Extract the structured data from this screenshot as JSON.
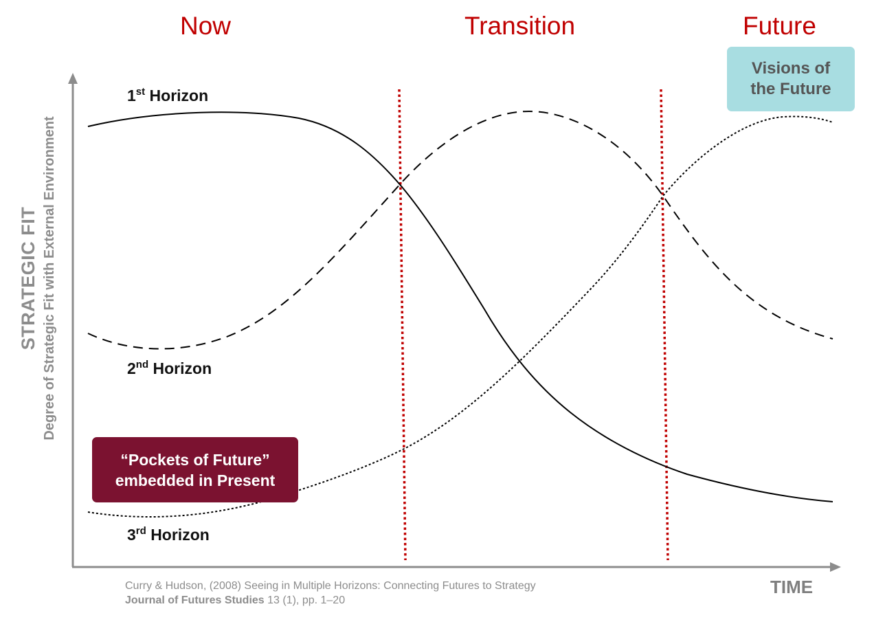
{
  "phases": {
    "now": "Now",
    "transition": "Transition",
    "future": "Future"
  },
  "y_axis": {
    "title": "STRATEGIC FIT",
    "subtitle": "Degree of Strategic Fit with External Environment"
  },
  "x_axis": {
    "title": "TIME"
  },
  "horizons": {
    "first": {
      "number": "1",
      "suffix": "st",
      "word": "Horizon",
      "line_style": "solid"
    },
    "second": {
      "number": "2",
      "suffix": "nd",
      "word": "Horizon",
      "line_style": "dashed"
    },
    "third": {
      "number": "3",
      "suffix": "rd",
      "word": "Horizon",
      "line_style": "dotted"
    }
  },
  "callouts": {
    "visions": {
      "line1": "Visions of",
      "line2": "the Future",
      "color": "#a8dde1"
    },
    "pockets": {
      "line1": "“Pockets of Future”",
      "line2": "embedded in Present",
      "color": "#7b1230"
    }
  },
  "citation": {
    "line1": "Curry & Hudson, (2008) Seeing in Multiple Horizons: Connecting Futures to Strategy",
    "journal": "Journal of Futures Studies",
    "details": " 13 (1), pp. 1–20"
  },
  "colors": {
    "phase_text": "#c00000",
    "divider": "#c00000",
    "axis": "#8c8c8c",
    "curve": "#000000"
  }
}
